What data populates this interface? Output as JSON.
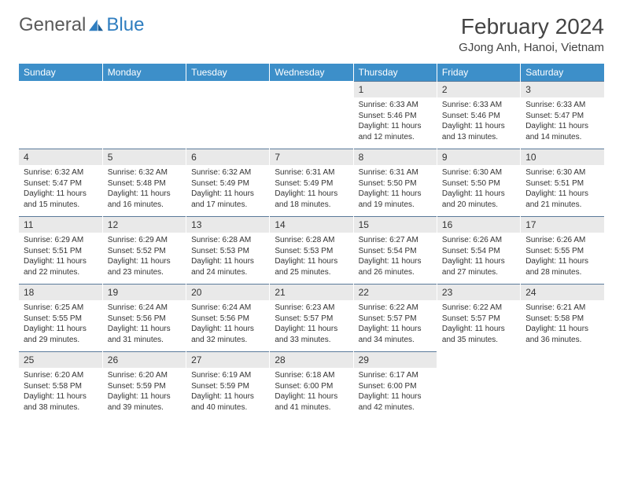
{
  "logo": {
    "text1": "General",
    "text2": "Blue"
  },
  "title": "February 2024",
  "location": "GJong Anh, Hanoi, Vietnam",
  "colors": {
    "header_bg": "#3d8fc9",
    "daynum_bg": "#e9e9e9",
    "day_border": "#5a7a9a",
    "logo_blue": "#2f7ec0"
  },
  "weekdays": [
    "Sunday",
    "Monday",
    "Tuesday",
    "Wednesday",
    "Thursday",
    "Friday",
    "Saturday"
  ],
  "weeks": [
    [
      null,
      null,
      null,
      null,
      {
        "n": "1",
        "sr": "Sunrise: 6:33 AM",
        "ss": "Sunset: 5:46 PM",
        "dl": "Daylight: 11 hours and 12 minutes."
      },
      {
        "n": "2",
        "sr": "Sunrise: 6:33 AM",
        "ss": "Sunset: 5:46 PM",
        "dl": "Daylight: 11 hours and 13 minutes."
      },
      {
        "n": "3",
        "sr": "Sunrise: 6:33 AM",
        "ss": "Sunset: 5:47 PM",
        "dl": "Daylight: 11 hours and 14 minutes."
      }
    ],
    [
      {
        "n": "4",
        "sr": "Sunrise: 6:32 AM",
        "ss": "Sunset: 5:47 PM",
        "dl": "Daylight: 11 hours and 15 minutes."
      },
      {
        "n": "5",
        "sr": "Sunrise: 6:32 AM",
        "ss": "Sunset: 5:48 PM",
        "dl": "Daylight: 11 hours and 16 minutes."
      },
      {
        "n": "6",
        "sr": "Sunrise: 6:32 AM",
        "ss": "Sunset: 5:49 PM",
        "dl": "Daylight: 11 hours and 17 minutes."
      },
      {
        "n": "7",
        "sr": "Sunrise: 6:31 AM",
        "ss": "Sunset: 5:49 PM",
        "dl": "Daylight: 11 hours and 18 minutes."
      },
      {
        "n": "8",
        "sr": "Sunrise: 6:31 AM",
        "ss": "Sunset: 5:50 PM",
        "dl": "Daylight: 11 hours and 19 minutes."
      },
      {
        "n": "9",
        "sr": "Sunrise: 6:30 AM",
        "ss": "Sunset: 5:50 PM",
        "dl": "Daylight: 11 hours and 20 minutes."
      },
      {
        "n": "10",
        "sr": "Sunrise: 6:30 AM",
        "ss": "Sunset: 5:51 PM",
        "dl": "Daylight: 11 hours and 21 minutes."
      }
    ],
    [
      {
        "n": "11",
        "sr": "Sunrise: 6:29 AM",
        "ss": "Sunset: 5:51 PM",
        "dl": "Daylight: 11 hours and 22 minutes."
      },
      {
        "n": "12",
        "sr": "Sunrise: 6:29 AM",
        "ss": "Sunset: 5:52 PM",
        "dl": "Daylight: 11 hours and 23 minutes."
      },
      {
        "n": "13",
        "sr": "Sunrise: 6:28 AM",
        "ss": "Sunset: 5:53 PM",
        "dl": "Daylight: 11 hours and 24 minutes."
      },
      {
        "n": "14",
        "sr": "Sunrise: 6:28 AM",
        "ss": "Sunset: 5:53 PM",
        "dl": "Daylight: 11 hours and 25 minutes."
      },
      {
        "n": "15",
        "sr": "Sunrise: 6:27 AM",
        "ss": "Sunset: 5:54 PM",
        "dl": "Daylight: 11 hours and 26 minutes."
      },
      {
        "n": "16",
        "sr": "Sunrise: 6:26 AM",
        "ss": "Sunset: 5:54 PM",
        "dl": "Daylight: 11 hours and 27 minutes."
      },
      {
        "n": "17",
        "sr": "Sunrise: 6:26 AM",
        "ss": "Sunset: 5:55 PM",
        "dl": "Daylight: 11 hours and 28 minutes."
      }
    ],
    [
      {
        "n": "18",
        "sr": "Sunrise: 6:25 AM",
        "ss": "Sunset: 5:55 PM",
        "dl": "Daylight: 11 hours and 29 minutes."
      },
      {
        "n": "19",
        "sr": "Sunrise: 6:24 AM",
        "ss": "Sunset: 5:56 PM",
        "dl": "Daylight: 11 hours and 31 minutes."
      },
      {
        "n": "20",
        "sr": "Sunrise: 6:24 AM",
        "ss": "Sunset: 5:56 PM",
        "dl": "Daylight: 11 hours and 32 minutes."
      },
      {
        "n": "21",
        "sr": "Sunrise: 6:23 AM",
        "ss": "Sunset: 5:57 PM",
        "dl": "Daylight: 11 hours and 33 minutes."
      },
      {
        "n": "22",
        "sr": "Sunrise: 6:22 AM",
        "ss": "Sunset: 5:57 PM",
        "dl": "Daylight: 11 hours and 34 minutes."
      },
      {
        "n": "23",
        "sr": "Sunrise: 6:22 AM",
        "ss": "Sunset: 5:57 PM",
        "dl": "Daylight: 11 hours and 35 minutes."
      },
      {
        "n": "24",
        "sr": "Sunrise: 6:21 AM",
        "ss": "Sunset: 5:58 PM",
        "dl": "Daylight: 11 hours and 36 minutes."
      }
    ],
    [
      {
        "n": "25",
        "sr": "Sunrise: 6:20 AM",
        "ss": "Sunset: 5:58 PM",
        "dl": "Daylight: 11 hours and 38 minutes."
      },
      {
        "n": "26",
        "sr": "Sunrise: 6:20 AM",
        "ss": "Sunset: 5:59 PM",
        "dl": "Daylight: 11 hours and 39 minutes."
      },
      {
        "n": "27",
        "sr": "Sunrise: 6:19 AM",
        "ss": "Sunset: 5:59 PM",
        "dl": "Daylight: 11 hours and 40 minutes."
      },
      {
        "n": "28",
        "sr": "Sunrise: 6:18 AM",
        "ss": "Sunset: 6:00 PM",
        "dl": "Daylight: 11 hours and 41 minutes."
      },
      {
        "n": "29",
        "sr": "Sunrise: 6:17 AM",
        "ss": "Sunset: 6:00 PM",
        "dl": "Daylight: 11 hours and 42 minutes."
      },
      null,
      null
    ]
  ]
}
